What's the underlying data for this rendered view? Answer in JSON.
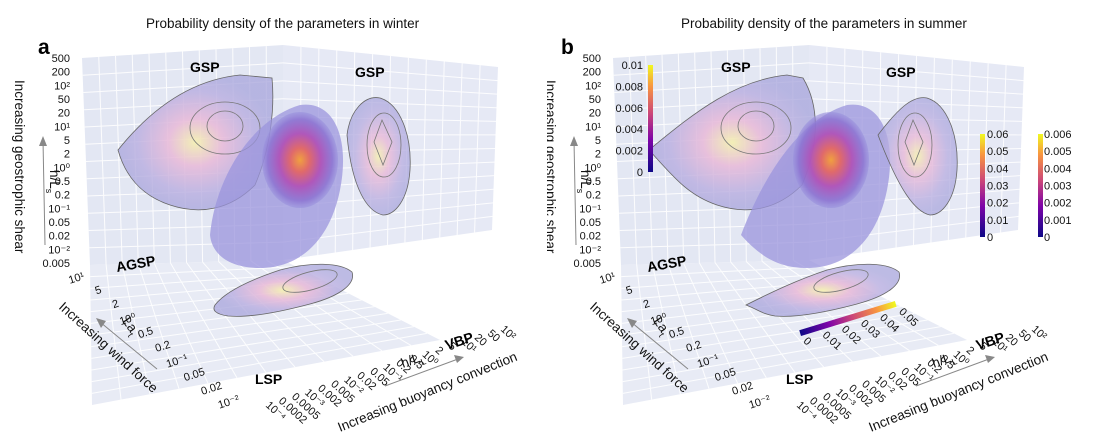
{
  "panels": [
    {
      "label": "a",
      "title": "Probability density of the parameters in winter",
      "regions": {
        "top_left": "GSP",
        "top_right": "GSP",
        "floor_left": "AGSP",
        "floor_bottom": "LSP",
        "floor_right": "VBP"
      },
      "colorbars": []
    },
    {
      "label": "b",
      "title": "Probability density of the parameters in summer",
      "regions": {
        "top_left": "GSP",
        "top_right": "GSP",
        "floor_left": "AGSP",
        "floor_bottom": "LSP",
        "floor_right": "VBP"
      },
      "colorbars": [
        {
          "name": "left-wall-colorbar",
          "ticks": [
            "0.01",
            "0.008",
            "0.006",
            "0.004",
            "0.002",
            "0"
          ],
          "range": [
            0,
            0.01
          ]
        },
        {
          "name": "center-colorbar",
          "ticks": [
            "0.06",
            "0.05",
            "0.04",
            "0.03",
            "0.02",
            "0.01",
            "0"
          ],
          "range": [
            0,
            0.06
          ]
        },
        {
          "name": "right-wall-colorbar",
          "ticks": [
            "0.006",
            "0.005",
            "0.004",
            "0.003",
            "0.002",
            "0.001",
            "0"
          ],
          "range": [
            0,
            0.006
          ]
        },
        {
          "name": "floor-colorbar",
          "ticks": [
            "0",
            "0.01",
            "0.02",
            "0.03",
            "0.04",
            "0.05"
          ],
          "range": [
            0,
            0.05
          ]
        }
      ]
    }
  ],
  "axes": {
    "vertical": {
      "label": "h/L",
      "label_sub": "s",
      "arrow_label": "Increasing geostrophic shear",
      "ticks": [
        "500",
        "200",
        "10²",
        "50",
        "20",
        "10¹",
        "5",
        "2",
        "10⁰",
        "0.5",
        "0.2",
        "10⁻¹",
        "0.05",
        "0.02",
        "10⁻²",
        "0.005"
      ]
    },
    "left_floor": {
      "label": "La",
      "label_sub": "t",
      "arrow_label": "Increasing wind force",
      "ticks": [
        "10¹",
        "5",
        "2",
        "10⁰",
        "0.5",
        "0.2",
        "10⁻¹",
        "0.05",
        "0.02",
        "10⁻²"
      ]
    },
    "right_floor": {
      "label": "h/L",
      "label_sub": "L",
      "arrow_label": "Increasing buoyancy convection",
      "ticks": [
        "10⁻⁴",
        "0.0002",
        "0.0005",
        "10⁻³",
        "0.002",
        "0.005",
        "10⁻²",
        "0.02",
        "0.05",
        "10⁻¹",
        "0.2",
        "0.5",
        "10⁰",
        "2",
        "5",
        "10¹",
        "20",
        "50",
        "10²"
      ]
    }
  },
  "chart_data": [
    {
      "type": "heatmap",
      "title": "Probability density of the parameters in winter",
      "panel": "a",
      "kind": "3D joint probability density projections (log axes)",
      "axes": {
        "x": {
          "label": "La_t",
          "range": [
            0.01,
            10
          ],
          "scale": "log"
        },
        "y": {
          "label": "h/L_L",
          "range": [
            0.0001,
            100
          ],
          "scale": "log"
        },
        "z": {
          "label": "h/L_s",
          "range": [
            0.005,
            500
          ],
          "scale": "log"
        }
      },
      "regimes": [
        "GSP",
        "GSP",
        "AGSP",
        "LSP",
        "VBP"
      ],
      "colormap": "plasma"
    },
    {
      "type": "heatmap",
      "title": "Probability density of the parameters in summer",
      "panel": "b",
      "kind": "3D joint probability density projections (log axes)",
      "axes": {
        "x": {
          "label": "La_t",
          "range": [
            0.01,
            10
          ],
          "scale": "log"
        },
        "y": {
          "label": "h/L_L",
          "range": [
            0.0001,
            100
          ],
          "scale": "log"
        },
        "z": {
          "label": "h/L_s",
          "range": [
            0.005,
            500
          ],
          "scale": "log"
        }
      },
      "regimes": [
        "GSP",
        "GSP",
        "AGSP",
        "LSP",
        "VBP"
      ],
      "colormap": "plasma",
      "colorbar_ranges": {
        "left_wall": [
          0,
          0.01
        ],
        "volume": [
          0,
          0.06
        ],
        "right_wall": [
          0,
          0.006
        ],
        "floor": [
          0,
          0.05
        ]
      }
    }
  ]
}
